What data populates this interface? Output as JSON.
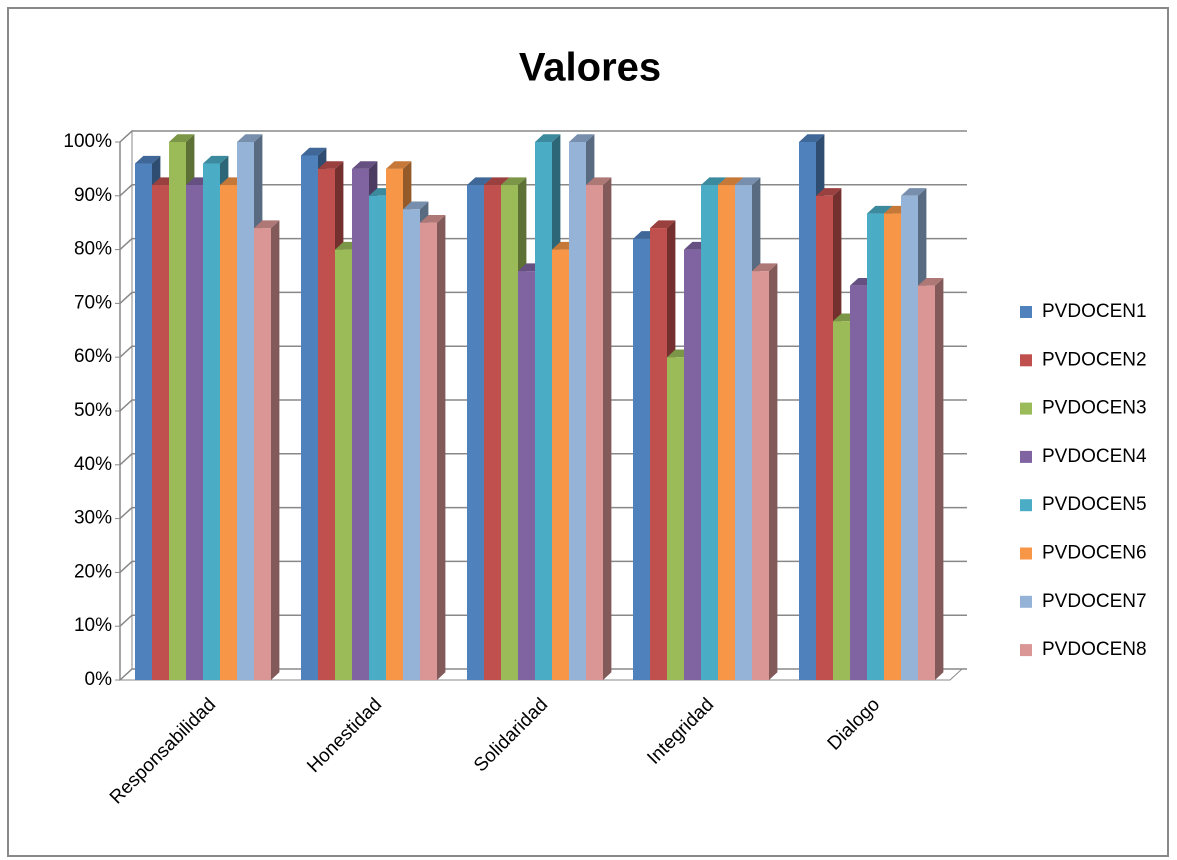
{
  "chart_data": {
    "type": "bar3d",
    "title": "Valores",
    "categories": [
      "Responsabilidad",
      "Honestidad",
      "Solidaridad",
      "Integridad",
      "Dialogo"
    ],
    "series": [
      {
        "name": "PVDOCEN1",
        "color": "#4f81bd",
        "values": [
          96,
          97.5,
          92,
          82,
          100
        ]
      },
      {
        "name": "PVDOCEN2",
        "color": "#c0504d",
        "values": [
          92,
          95,
          92,
          84,
          90
        ]
      },
      {
        "name": "PVDOCEN3",
        "color": "#9bbb59",
        "values": [
          100,
          80,
          92,
          60,
          66.7
        ]
      },
      {
        "name": "PVDOCEN4",
        "color": "#8064a2",
        "values": [
          92,
          95,
          76,
          80,
          73.3
        ]
      },
      {
        "name": "PVDOCEN5",
        "color": "#4bacc6",
        "values": [
          96,
          90,
          100,
          92,
          86.7
        ]
      },
      {
        "name": "PVDOCEN6",
        "color": "#f79646",
        "values": [
          92,
          95,
          80,
          92,
          86.7
        ]
      },
      {
        "name": "PVDOCEN7",
        "color": "#95b3d7",
        "values": [
          100,
          87.5,
          100,
          92,
          90
        ]
      },
      {
        "name": "PVDOCEN8",
        "color": "#d99694",
        "values": [
          84,
          85,
          92,
          76,
          73.3
        ]
      }
    ],
    "ylim": [
      0,
      100
    ],
    "yticks": [
      {
        "value": 0,
        "label": "0%"
      },
      {
        "value": 10,
        "label": "10%"
      },
      {
        "value": 20,
        "label": "20%"
      },
      {
        "value": 30,
        "label": "30%"
      },
      {
        "value": 40,
        "label": "40%"
      },
      {
        "value": 50,
        "label": "50%"
      },
      {
        "value": 60,
        "label": "60%"
      },
      {
        "value": 70,
        "label": "70%"
      },
      {
        "value": 80,
        "label": "80%"
      },
      {
        "value": 90,
        "label": "90%"
      },
      {
        "value": 100,
        "label": "100%"
      }
    ],
    "grid": true,
    "legend": "right"
  }
}
